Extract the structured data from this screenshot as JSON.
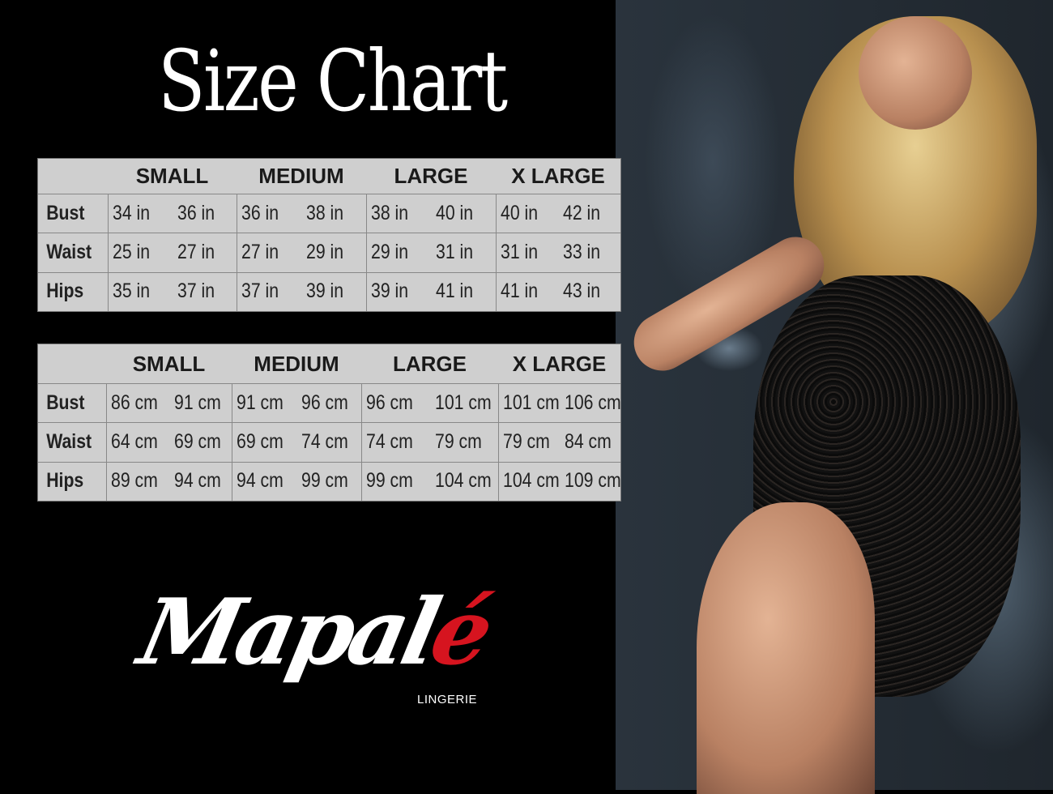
{
  "title": "Size Chart",
  "sizes": [
    "SMALL",
    "MEDIUM",
    "LARGE",
    "X LARGE"
  ],
  "tables": [
    {
      "unit": "in",
      "rows": [
        {
          "label": "Bust",
          "values": [
            "34 in",
            "36 in",
            "36 in",
            "38 in",
            "38 in",
            "40 in",
            "40 in",
            "42 in"
          ]
        },
        {
          "label": "Waist",
          "values": [
            "25 in",
            "27 in",
            "27 in",
            "29 in",
            "29 in",
            "31 in",
            "31 in",
            "33 in"
          ]
        },
        {
          "label": "Hips",
          "values": [
            "35 in",
            "37 in",
            "37 in",
            "39 in",
            "39 in",
            "41 in",
            "41 in",
            "43 in"
          ]
        }
      ]
    },
    {
      "unit": "cm",
      "rows": [
        {
          "label": "Bust",
          "values": [
            "86 cm",
            "91 cm",
            "91 cm",
            "96 cm",
            "96 cm",
            "101 cm",
            "101 cm",
            "106 cm"
          ]
        },
        {
          "label": "Waist",
          "values": [
            "64 cm",
            "69 cm",
            "69 cm",
            "74 cm",
            "74 cm",
            "79  cm",
            "79 cm",
            "84 cm"
          ]
        },
        {
          "label": "Hips",
          "values": [
            "89 cm",
            "94 cm",
            "94 cm",
            "99 cm",
            "99 cm",
            "104 cm",
            "104 cm",
            "109 cm"
          ]
        }
      ]
    }
  ],
  "brand": {
    "name_main": "Mapal",
    "name_accent": "é",
    "tagline": "LINGERIE",
    "accent_color": "#d6141f"
  },
  "colors": {
    "table_bg": "#cfcfcf",
    "background": "#000000"
  }
}
